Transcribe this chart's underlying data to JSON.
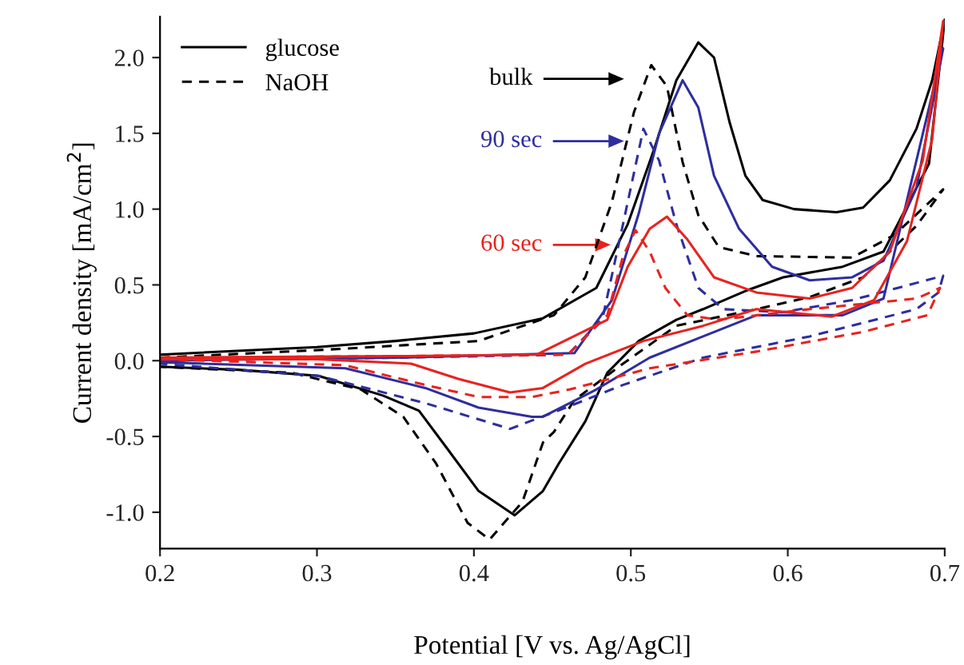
{
  "chart_data": {
    "type": "line",
    "xlabel": "Potential [V vs. Ag/AgCl]",
    "ylabel": "Current density [mA/cm$^{2}$]",
    "xlim": [
      0.2,
      0.7
    ],
    "ylim": [
      -1.24,
      2.27
    ],
    "xticks": [
      0.2,
      0.3,
      0.4,
      0.5,
      0.6,
      0.7
    ],
    "yticks": [
      {
        "value": -1.0,
        "label": "-1.0"
      },
      {
        "value": -0.5,
        "label": "-0.5"
      },
      {
        "value": 0.0,
        "label": "0.0"
      },
      {
        "value": 0.5,
        "label": "0.5"
      },
      {
        "value": 1.0,
        "label": "1.0"
      },
      {
        "value": 1.5,
        "label": "1.5"
      },
      {
        "value": 2.0,
        "label": "2.0"
      }
    ],
    "grid": false,
    "legend": "top left",
    "marker": "none",
    "series": [
      {
        "name": "glucose",
        "color": "#000000",
        "line_style": "solid",
        "x": [
          0.2,
          0.3,
          0.35,
          0.4,
          0.444,
          0.478,
          0.498,
          0.515,
          0.529,
          0.543,
          0.553,
          0.563,
          0.573,
          0.584,
          0.604,
          0.631,
          0.648,
          0.665,
          0.682,
          0.692,
          0.699,
          0.7,
          0.69,
          0.661,
          0.635,
          0.597,
          0.573,
          0.546,
          0.529,
          0.505,
          0.485,
          0.471,
          0.454,
          0.444,
          0.426,
          0.403,
          0.383,
          0.365,
          0.342,
          0.301,
          0.25,
          0.2
        ],
        "values": [
          0.04,
          0.09,
          0.13,
          0.18,
          0.28,
          0.48,
          0.9,
          1.4,
          1.85,
          2.1,
          2.0,
          1.57,
          1.22,
          1.06,
          1.0,
          0.98,
          1.01,
          1.19,
          1.53,
          1.85,
          2.2,
          2.25,
          1.3,
          0.72,
          0.62,
          0.55,
          0.46,
          0.34,
          0.27,
          0.13,
          -0.08,
          -0.4,
          -0.68,
          -0.86,
          -1.02,
          -0.86,
          -0.58,
          -0.33,
          -0.23,
          -0.1,
          -0.06,
          -0.04
        ]
      },
      {
        "name": "NaOH",
        "color": "#000000",
        "line_style": "dashed",
        "x": [
          0.2,
          0.301,
          0.403,
          0.451,
          0.471,
          0.488,
          0.502,
          0.513,
          0.523,
          0.533,
          0.543,
          0.556,
          0.58,
          0.641,
          0.668,
          0.699,
          0.682,
          0.648,
          0.614,
          0.58,
          0.529,
          0.495,
          0.464,
          0.451,
          0.444,
          0.431,
          0.41,
          0.396,
          0.376,
          0.355,
          0.328,
          0.284,
          0.2
        ],
        "values": [
          0.02,
          0.07,
          0.13,
          0.3,
          0.55,
          1.05,
          1.64,
          1.95,
          1.81,
          1.31,
          0.96,
          0.75,
          0.69,
          0.68,
          0.83,
          1.13,
          0.89,
          0.55,
          0.42,
          0.34,
          0.23,
          -0.02,
          -0.26,
          -0.47,
          -0.54,
          -0.93,
          -1.18,
          -1.07,
          -0.68,
          -0.37,
          -0.19,
          -0.08,
          -0.04
        ]
      },
      {
        "color": "#2e2e9e",
        "line_style": "solid",
        "x": [
          0.2,
          0.35,
          0.464,
          0.488,
          0.505,
          0.518,
          0.533,
          0.543,
          0.553,
          0.569,
          0.59,
          0.614,
          0.641,
          0.661,
          0.682,
          0.699,
          0.661,
          0.635,
          0.58,
          0.546,
          0.512,
          0.478,
          0.444,
          0.437,
          0.403,
          0.369,
          0.318,
          0.2
        ],
        "values": [
          0.0,
          0.02,
          0.05,
          0.4,
          0.97,
          1.5,
          1.85,
          1.67,
          1.22,
          0.87,
          0.62,
          0.53,
          0.55,
          0.66,
          1.14,
          2.06,
          0.41,
          0.3,
          0.3,
          0.16,
          0.02,
          -0.19,
          -0.37,
          -0.37,
          -0.31,
          -0.18,
          -0.05,
          -0.01
        ]
      },
      {
        "color": "#2e2e9e",
        "line_style": "dashed",
        "x": [
          0.2,
          0.35,
          0.46,
          0.482,
          0.495,
          0.508,
          0.518,
          0.529,
          0.543,
          0.559,
          0.597,
          0.641,
          0.699,
          0.696,
          0.682,
          0.614,
          0.546,
          0.495,
          0.461,
          0.423,
          0.369,
          0.301,
          0.2
        ],
        "values": [
          0.0,
          0.02,
          0.04,
          0.28,
          0.9,
          1.53,
          1.32,
          0.9,
          0.48,
          0.34,
          0.32,
          0.4,
          0.56,
          0.45,
          0.34,
          0.16,
          0.02,
          -0.16,
          -0.3,
          -0.45,
          -0.28,
          -0.1,
          -0.02
        ]
      },
      {
        "color": "#e8231e",
        "line_style": "solid",
        "x": [
          0.2,
          0.35,
          0.44,
          0.485,
          0.498,
          0.512,
          0.523,
          0.536,
          0.553,
          0.58,
          0.614,
          0.641,
          0.665,
          0.686,
          0.699,
          0.692,
          0.676,
          0.655,
          0.628,
          0.58,
          0.546,
          0.508,
          0.471,
          0.444,
          0.423,
          0.39,
          0.36,
          0.3,
          0.2
        ],
        "values": [
          0.02,
          0.03,
          0.04,
          0.27,
          0.62,
          0.87,
          0.95,
          0.8,
          0.55,
          0.45,
          0.41,
          0.48,
          0.72,
          1.32,
          2.24,
          1.46,
          0.79,
          0.4,
          0.29,
          0.34,
          0.23,
          0.13,
          -0.02,
          -0.18,
          -0.21,
          -0.12,
          -0.02,
          0.01,
          0.01
        ]
      },
      {
        "color": "#e8231e",
        "line_style": "dashed",
        "x": [
          0.2,
          0.35,
          0.46,
          0.485,
          0.495,
          0.503,
          0.512,
          0.522,
          0.536,
          0.556,
          0.614,
          0.682,
          0.697,
          0.689,
          0.648,
          0.58,
          0.512,
          0.461,
          0.437,
          0.403,
          0.369,
          0.318,
          0.2
        ],
        "values": [
          0.02,
          0.03,
          0.04,
          0.3,
          0.69,
          0.86,
          0.72,
          0.48,
          0.3,
          0.27,
          0.34,
          0.41,
          0.48,
          0.3,
          0.19,
          0.06,
          -0.05,
          -0.19,
          -0.24,
          -0.24,
          -0.16,
          -0.03,
          0.01
        ]
      }
    ],
    "annotations": [
      "bulk",
      "90 sec",
      "60 sec"
    ]
  }
}
